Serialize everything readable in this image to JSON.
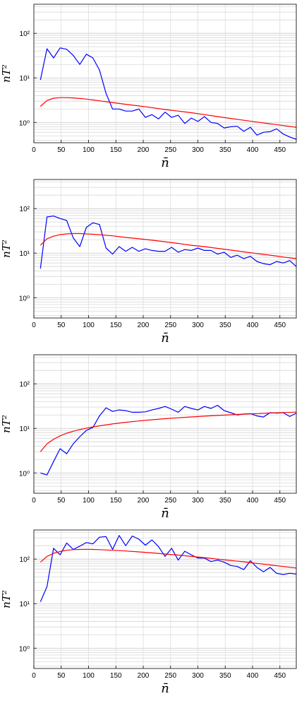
{
  "chart_data": [
    {
      "type": "line",
      "xlabel": "n̄",
      "ylabel": "nT²",
      "xlim": [
        0,
        480
      ],
      "ylim": [
        0.35,
        450
      ],
      "yscale": "log",
      "grid": "horizontal major and minor",
      "x_ticks": [
        0,
        50,
        100,
        150,
        200,
        250,
        300,
        350,
        400,
        450
      ],
      "y_ticks": [
        {
          "value": 1,
          "label": "10⁰"
        },
        {
          "value": 10,
          "label": "10¹"
        },
        {
          "value": 100,
          "label": "10²"
        }
      ],
      "series": [
        {
          "color": "#0000ff",
          "x": [
            12,
            24,
            36,
            48,
            60,
            72,
            84,
            96,
            108,
            120,
            132,
            144,
            156,
            168,
            180,
            192,
            204,
            216,
            228,
            240,
            252,
            264,
            276,
            288,
            300,
            312,
            324,
            336,
            348,
            360,
            372,
            384,
            396,
            408,
            420,
            432,
            444,
            456,
            468,
            480
          ],
          "y": [
            9,
            45,
            28,
            47,
            44,
            32,
            20,
            34,
            28,
            15,
            4.5,
            2.0,
            2.0,
            1.8,
            1.8,
            2.0,
            1.3,
            1.5,
            1.2,
            1.7,
            1.3,
            1.45,
            0.95,
            1.25,
            1.05,
            1.35,
            1.0,
            0.95,
            0.75,
            0.8,
            0.82,
            0.63,
            0.78,
            0.52,
            0.6,
            0.62,
            0.72,
            0.55,
            0.47,
            0.42
          ]
        },
        {
          "color": "#ff0000",
          "x": [
            12,
            24,
            36,
            48,
            60,
            72,
            84,
            96,
            108,
            120,
            144,
            168,
            192,
            216,
            240,
            264,
            288,
            312,
            336,
            360,
            384,
            408,
            432,
            456,
            480
          ],
          "y": [
            2.3,
            3.1,
            3.5,
            3.6,
            3.6,
            3.55,
            3.45,
            3.35,
            3.2,
            3.05,
            2.8,
            2.55,
            2.35,
            2.15,
            1.95,
            1.8,
            1.65,
            1.5,
            1.35,
            1.23,
            1.12,
            1.02,
            0.93,
            0.85,
            0.78
          ]
        }
      ]
    },
    {
      "type": "line",
      "xlabel": "n̄",
      "ylabel": "nT²",
      "xlim": [
        0,
        480
      ],
      "ylim": [
        0.35,
        450
      ],
      "yscale": "log",
      "grid": "horizontal major and minor",
      "x_ticks": [
        0,
        50,
        100,
        150,
        200,
        250,
        300,
        350,
        400,
        450
      ],
      "y_ticks": [
        {
          "value": 1,
          "label": "10⁰"
        },
        {
          "value": 10,
          "label": "10¹"
        },
        {
          "value": 100,
          "label": "10²"
        }
      ],
      "series": [
        {
          "color": "#0000ff",
          "x": [
            12,
            24,
            36,
            48,
            60,
            72,
            84,
            96,
            108,
            120,
            132,
            144,
            156,
            168,
            180,
            192,
            204,
            216,
            228,
            240,
            252,
            264,
            276,
            288,
            300,
            312,
            324,
            336,
            348,
            360,
            372,
            384,
            396,
            408,
            420,
            432,
            444,
            456,
            468,
            480
          ],
          "y": [
            4.5,
            65,
            68,
            60,
            54,
            22,
            14,
            38,
            48,
            44,
            13,
            9.5,
            14,
            11,
            13.5,
            11,
            12.5,
            11.5,
            11,
            11,
            13.5,
            10.5,
            12,
            11.5,
            13,
            11.5,
            11.5,
            9.5,
            10.5,
            8,
            9,
            7.5,
            8.5,
            6.5,
            5.8,
            5.5,
            6.5,
            6,
            6.8,
            5
          ]
        },
        {
          "color": "#ff0000",
          "x": [
            12,
            24,
            36,
            48,
            60,
            72,
            84,
            96,
            108,
            120,
            144,
            168,
            192,
            216,
            240,
            264,
            288,
            312,
            336,
            360,
            384,
            408,
            432,
            456,
            480
          ],
          "y": [
            15,
            21,
            24,
            26,
            27,
            27.5,
            27.5,
            27,
            26.5,
            26,
            24.5,
            22.5,
            21,
            19.5,
            18,
            16.5,
            15,
            14,
            12.8,
            11.7,
            10.7,
            9.8,
            9,
            8.2,
            7.5
          ]
        }
      ]
    },
    {
      "type": "line",
      "xlabel": "n̄",
      "ylabel": "nT²",
      "xlim": [
        0,
        480
      ],
      "ylim": [
        0.35,
        450
      ],
      "yscale": "log",
      "grid": "horizontal major and minor",
      "x_ticks": [
        0,
        50,
        100,
        150,
        200,
        250,
        300,
        350,
        400,
        450
      ],
      "y_ticks": [
        {
          "value": 1,
          "label": "10⁰"
        },
        {
          "value": 10,
          "label": "10¹"
        },
        {
          "value": 100,
          "label": "10²"
        }
      ],
      "series": [
        {
          "color": "#0000ff",
          "x": [
            12,
            24,
            36,
            48,
            60,
            72,
            84,
            96,
            108,
            120,
            132,
            144,
            156,
            168,
            180,
            192,
            204,
            216,
            228,
            240,
            252,
            264,
            276,
            288,
            300,
            312,
            324,
            336,
            348,
            360,
            372,
            384,
            396,
            408,
            420,
            432,
            444,
            456,
            468,
            480
          ],
          "y": [
            1.0,
            0.9,
            1.8,
            3.5,
            2.7,
            4.5,
            6.5,
            9,
            10.5,
            19,
            29,
            24,
            26,
            25,
            23,
            23,
            23.5,
            26,
            28,
            31,
            27,
            23,
            31,
            28,
            26,
            31,
            28,
            33,
            25,
            22.5,
            20,
            21,
            21.5,
            19,
            18,
            22.5,
            22,
            22.5,
            18.5,
            22
          ]
        },
        {
          "color": "#ff0000",
          "x": [
            12,
            24,
            36,
            48,
            60,
            72,
            84,
            96,
            108,
            120,
            144,
            168,
            192,
            216,
            240,
            264,
            288,
            312,
            336,
            360,
            384,
            408,
            432,
            456,
            480
          ],
          "y": [
            3,
            4.5,
            5.7,
            6.8,
            7.8,
            8.6,
            9.4,
            10.1,
            10.8,
            11.4,
            12.6,
            13.7,
            14.7,
            15.6,
            16.5,
            17.3,
            18.1,
            18.8,
            19.5,
            20.2,
            20.9,
            21.5,
            22.1,
            22.7,
            23.2
          ]
        }
      ]
    },
    {
      "type": "line",
      "xlabel": "n̄",
      "ylabel": "nT²",
      "xlim": [
        0,
        480
      ],
      "ylim": [
        0.35,
        450
      ],
      "yscale": "log",
      "grid": "horizontal major and minor",
      "x_ticks": [
        0,
        50,
        100,
        150,
        200,
        250,
        300,
        350,
        400,
        450
      ],
      "y_ticks": [
        {
          "value": 1,
          "label": "10⁰"
        },
        {
          "value": 10,
          "label": "10¹"
        },
        {
          "value": 100,
          "label": "10²"
        }
      ],
      "series": [
        {
          "color": "#0000ff",
          "x": [
            12,
            24,
            36,
            48,
            60,
            72,
            84,
            96,
            108,
            120,
            132,
            144,
            156,
            168,
            180,
            192,
            204,
            216,
            228,
            240,
            252,
            264,
            276,
            288,
            300,
            312,
            324,
            336,
            348,
            360,
            372,
            384,
            396,
            408,
            420,
            432,
            444,
            456,
            468,
            480
          ],
          "y": [
            11,
            24,
            175,
            125,
            230,
            165,
            195,
            235,
            220,
            310,
            320,
            165,
            340,
            200,
            330,
            280,
            205,
            270,
            190,
            115,
            175,
            95,
            150,
            125,
            105,
            105,
            88,
            95,
            85,
            72,
            68,
            58,
            92,
            65,
            52,
            65,
            48,
            45,
            48,
            46
          ]
        },
        {
          "color": "#ff0000",
          "x": [
            12,
            24,
            36,
            48,
            60,
            72,
            84,
            96,
            108,
            120,
            144,
            168,
            192,
            216,
            240,
            264,
            288,
            312,
            336,
            360,
            384,
            408,
            432,
            456,
            480
          ],
          "y": [
            85,
            115,
            135,
            148,
            158,
            163,
            165,
            166,
            165,
            163,
            158,
            152,
            145,
            138,
            130,
            123,
            115,
            108,
            100,
            93,
            87,
            80,
            74,
            68,
            63
          ]
        }
      ]
    }
  ]
}
